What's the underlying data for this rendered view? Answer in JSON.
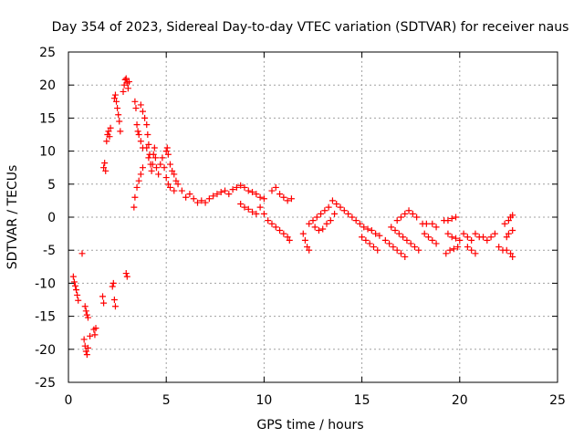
{
  "chart_data": {
    "type": "scatter",
    "title": "Day 354 of 2023, Sidereal Day-to-day VTEC variation (SDTVAR) for receiver naus",
    "xlabel": "GPS time / hours",
    "ylabel": "SDTVAR / TECUs",
    "xlim": [
      0,
      25
    ],
    "ylim": [
      -25,
      25
    ],
    "xticks": [
      0,
      5,
      10,
      15,
      20,
      25
    ],
    "yticks": [
      25,
      20,
      15,
      10,
      5,
      0,
      -5,
      -10,
      -15,
      -20,
      -25
    ],
    "grid": true,
    "marker": "+",
    "colors": {
      "series": "#ff0000",
      "grid": "#a0a0a0",
      "axis": "#000000"
    },
    "series": [
      {
        "name": "SDTVAR",
        "points": [
          [
            0.25,
            -9.0
          ],
          [
            0.3,
            -9.8
          ],
          [
            0.35,
            -10.4
          ],
          [
            0.4,
            -11.0
          ],
          [
            0.45,
            -11.8
          ],
          [
            0.5,
            -12.6
          ],
          [
            0.7,
            -5.5
          ],
          [
            0.85,
            -13.5
          ],
          [
            0.9,
            -14.2
          ],
          [
            0.95,
            -14.8
          ],
          [
            1.0,
            -15.2
          ],
          [
            0.8,
            -18.5
          ],
          [
            0.85,
            -19.5
          ],
          [
            0.9,
            -20.3
          ],
          [
            0.95,
            -20.8
          ],
          [
            1.0,
            -19.8
          ],
          [
            1.1,
            -18.0
          ],
          [
            1.3,
            -17.0
          ],
          [
            1.35,
            -17.8
          ],
          [
            1.4,
            -16.8
          ],
          [
            1.75,
            -12.0
          ],
          [
            1.8,
            -13.0
          ],
          [
            1.8,
            7.5
          ],
          [
            1.85,
            8.2
          ],
          [
            1.9,
            7.0
          ],
          [
            1.95,
            11.5
          ],
          [
            2.0,
            12.5
          ],
          [
            2.05,
            13.0
          ],
          [
            2.1,
            12.2
          ],
          [
            2.15,
            13.5
          ],
          [
            2.25,
            -10.5
          ],
          [
            2.3,
            -10.0
          ],
          [
            2.35,
            -12.5
          ],
          [
            2.4,
            -13.5
          ],
          [
            2.35,
            18.0
          ],
          [
            2.4,
            18.5
          ],
          [
            2.45,
            17.5
          ],
          [
            2.5,
            16.5
          ],
          [
            2.55,
            15.5
          ],
          [
            2.6,
            14.5
          ],
          [
            2.65,
            13.0
          ],
          [
            2.8,
            19.0
          ],
          [
            2.85,
            20.0
          ],
          [
            2.9,
            20.8
          ],
          [
            2.95,
            21.0
          ],
          [
            3.0,
            20.3
          ],
          [
            3.05,
            19.5
          ],
          [
            3.1,
            20.5
          ],
          [
            2.95,
            -8.5
          ],
          [
            3.0,
            -9.0
          ],
          [
            3.35,
            1.5
          ],
          [
            3.4,
            3.0
          ],
          [
            3.5,
            4.5
          ],
          [
            3.6,
            5.5
          ],
          [
            3.7,
            6.5
          ],
          [
            3.8,
            7.5
          ],
          [
            3.4,
            17.5
          ],
          [
            3.45,
            16.5
          ],
          [
            3.5,
            14.0
          ],
          [
            3.55,
            13.0
          ],
          [
            3.6,
            12.5
          ],
          [
            3.7,
            11.5
          ],
          [
            3.8,
            10.5
          ],
          [
            3.7,
            17.0
          ],
          [
            3.8,
            16.0
          ],
          [
            3.9,
            15.0
          ],
          [
            4.0,
            14.0
          ],
          [
            4.05,
            12.5
          ],
          [
            4.1,
            11.0
          ],
          [
            4.15,
            9.5
          ],
          [
            4.2,
            8.0
          ],
          [
            4.25,
            7.0
          ],
          [
            4.0,
            10.5
          ],
          [
            4.1,
            9.0
          ],
          [
            4.3,
            8.0
          ],
          [
            4.35,
            9.5
          ],
          [
            4.4,
            10.5
          ],
          [
            4.45,
            9.0
          ],
          [
            4.5,
            7.5
          ],
          [
            4.6,
            6.5
          ],
          [
            4.7,
            8.0
          ],
          [
            4.8,
            9.0
          ],
          [
            4.9,
            7.5
          ],
          [
            5.0,
            10.0
          ],
          [
            5.05,
            10.5
          ],
          [
            5.1,
            9.5
          ],
          [
            5.2,
            8.0
          ],
          [
            5.3,
            7.0
          ],
          [
            5.4,
            6.5
          ],
          [
            5.5,
            5.5
          ],
          [
            5.0,
            6.0
          ],
          [
            5.1,
            5.0
          ],
          [
            5.2,
            4.5
          ],
          [
            5.4,
            4.0
          ],
          [
            5.6,
            5.0
          ],
          [
            5.8,
            4.0
          ],
          [
            6.0,
            3.0
          ],
          [
            6.2,
            3.5
          ],
          [
            6.4,
            2.8
          ],
          [
            6.6,
            2.2
          ],
          [
            6.8,
            2.5
          ],
          [
            7.0,
            2.2
          ],
          [
            7.2,
            2.8
          ],
          [
            7.4,
            3.2
          ],
          [
            7.6,
            3.5
          ],
          [
            7.8,
            3.8
          ],
          [
            8.0,
            4.0
          ],
          [
            8.2,
            3.5
          ],
          [
            8.4,
            4.2
          ],
          [
            8.6,
            4.5
          ],
          [
            8.8,
            4.8
          ],
          [
            9.0,
            4.5
          ],
          [
            9.2,
            4.0
          ],
          [
            9.4,
            3.8
          ],
          [
            9.6,
            3.5
          ],
          [
            9.8,
            3.0
          ],
          [
            10.0,
            2.8
          ],
          [
            8.8,
            2.0
          ],
          [
            9.0,
            1.5
          ],
          [
            9.2,
            1.2
          ],
          [
            9.4,
            0.8
          ],
          [
            9.6,
            0.5
          ],
          [
            9.8,
            1.5
          ],
          [
            10.0,
            0.5
          ],
          [
            10.2,
            -0.5
          ],
          [
            10.4,
            -1.0
          ],
          [
            10.6,
            -1.5
          ],
          [
            10.8,
            -2.0
          ],
          [
            11.0,
            -2.5
          ],
          [
            11.2,
            -3.0
          ],
          [
            11.3,
            -3.5
          ],
          [
            10.4,
            4.0
          ],
          [
            10.6,
            4.5
          ],
          [
            10.8,
            3.5
          ],
          [
            11.0,
            3.0
          ],
          [
            11.2,
            2.5
          ],
          [
            11.4,
            2.8
          ],
          [
            12.0,
            -2.5
          ],
          [
            12.1,
            -3.5
          ],
          [
            12.2,
            -4.5
          ],
          [
            12.3,
            -5.0
          ],
          [
            12.3,
            -1.0
          ],
          [
            12.5,
            -0.5
          ],
          [
            12.7,
            0.0
          ],
          [
            12.9,
            0.5
          ],
          [
            13.1,
            1.0
          ],
          [
            13.3,
            1.5
          ],
          [
            13.5,
            2.5
          ],
          [
            13.7,
            2.0
          ],
          [
            12.6,
            -1.5
          ],
          [
            12.8,
            -2.0
          ],
          [
            13.0,
            -1.8
          ],
          [
            13.2,
            -1.0
          ],
          [
            13.4,
            -0.5
          ],
          [
            13.6,
            0.5
          ],
          [
            13.9,
            1.5
          ],
          [
            14.1,
            1.0
          ],
          [
            14.3,
            0.5
          ],
          [
            14.5,
            0.0
          ],
          [
            14.7,
            -0.5
          ],
          [
            14.9,
            -1.0
          ],
          [
            15.1,
            -1.5
          ],
          [
            15.3,
            -1.8
          ],
          [
            15.5,
            -2.0
          ],
          [
            15.7,
            -2.5
          ],
          [
            15.9,
            -2.8
          ],
          [
            15.0,
            -3.0
          ],
          [
            15.2,
            -3.5
          ],
          [
            15.4,
            -4.0
          ],
          [
            15.6,
            -4.5
          ],
          [
            15.8,
            -5.0
          ],
          [
            16.2,
            -3.5
          ],
          [
            16.4,
            -4.0
          ],
          [
            16.6,
            -4.5
          ],
          [
            16.8,
            -5.0
          ],
          [
            17.0,
            -5.5
          ],
          [
            17.2,
            -6.0
          ],
          [
            16.5,
            -1.5
          ],
          [
            16.7,
            -2.0
          ],
          [
            16.9,
            -2.5
          ],
          [
            17.1,
            -3.0
          ],
          [
            17.3,
            -3.5
          ],
          [
            17.5,
            -4.0
          ],
          [
            17.7,
            -4.5
          ],
          [
            17.9,
            -5.0
          ],
          [
            16.8,
            -0.5
          ],
          [
            17.0,
            0.0
          ],
          [
            17.2,
            0.5
          ],
          [
            17.4,
            1.0
          ],
          [
            17.6,
            0.5
          ],
          [
            17.8,
            0.0
          ],
          [
            18.2,
            -2.5
          ],
          [
            18.4,
            -3.0
          ],
          [
            18.6,
            -3.5
          ],
          [
            18.8,
            -4.0
          ],
          [
            18.1,
            -1.0
          ],
          [
            18.3,
            -1.0
          ],
          [
            18.6,
            -1.0
          ],
          [
            18.8,
            -1.5
          ],
          [
            19.3,
            -5.5
          ],
          [
            19.5,
            -5.0
          ],
          [
            19.7,
            -4.8
          ],
          [
            19.9,
            -4.5
          ],
          [
            19.4,
            -2.5
          ],
          [
            19.6,
            -3.0
          ],
          [
            19.8,
            -3.2
          ],
          [
            20.0,
            -3.5
          ],
          [
            19.2,
            -0.5
          ],
          [
            19.4,
            -0.5
          ],
          [
            19.6,
            -0.2
          ],
          [
            19.8,
            0.0
          ],
          [
            20.2,
            -2.5
          ],
          [
            20.4,
            -3.0
          ],
          [
            20.6,
            -3.5
          ],
          [
            20.8,
            -2.5
          ],
          [
            21.0,
            -3.0
          ],
          [
            20.4,
            -4.5
          ],
          [
            20.6,
            -5.0
          ],
          [
            20.8,
            -5.5
          ],
          [
            21.2,
            -3.0
          ],
          [
            21.4,
            -3.5
          ],
          [
            21.6,
            -3.0
          ],
          [
            21.8,
            -2.5
          ],
          [
            22.0,
            -4.5
          ],
          [
            22.2,
            -5.0
          ],
          [
            22.4,
            -5.0
          ],
          [
            22.6,
            -5.5
          ],
          [
            22.7,
            -6.0
          ],
          [
            22.3,
            -1.0
          ],
          [
            22.5,
            -0.5
          ],
          [
            22.6,
            0.0
          ],
          [
            22.7,
            0.3
          ],
          [
            22.4,
            -3.0
          ],
          [
            22.5,
            -2.5
          ],
          [
            22.7,
            -2.0
          ]
        ]
      }
    ]
  }
}
